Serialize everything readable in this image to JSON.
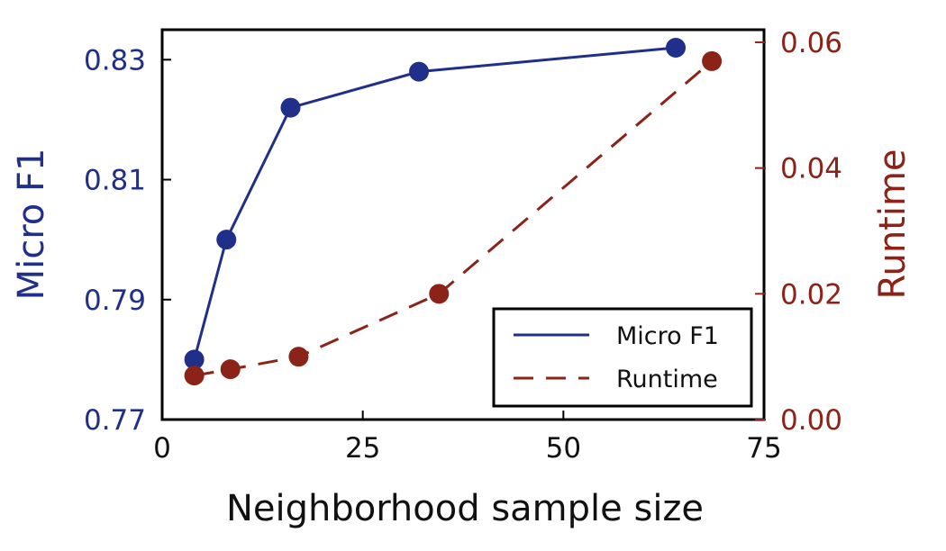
{
  "chart_data": {
    "type": "line",
    "title": "",
    "xlabel": "Neighborhood sample size",
    "xlim": [
      0,
      75
    ],
    "xticks": [
      0,
      25,
      50,
      75
    ],
    "x_tick_labels": [
      "0",
      "25",
      "50",
      "75"
    ],
    "grid": false,
    "legend_position": "bottom-right",
    "left_axis": {
      "label": "Micro F1",
      "color": "#1f2f8a",
      "ylim": [
        0.77,
        0.835
      ],
      "ticks": [
        0.77,
        0.79,
        0.81,
        0.83
      ],
      "tick_labels": [
        "0.77",
        "0.79",
        "0.81",
        "0.83"
      ]
    },
    "right_axis": {
      "label": "Runtime",
      "color": "#8b2318",
      "ylim": [
        0.0,
        0.062
      ],
      "ticks": [
        0.0,
        0.02,
        0.04,
        0.06
      ],
      "tick_labels": [
        "0.00",
        "0.02",
        "0.04",
        "0.06"
      ]
    },
    "series": [
      {
        "name": "Micro F1",
        "axis": "left",
        "line_style": "solid",
        "color": "#1f2f8a",
        "x": [
          4,
          8,
          16,
          32,
          64
        ],
        "values": [
          0.78,
          0.8,
          0.822,
          0.828,
          0.832
        ]
      },
      {
        "name": "Runtime",
        "axis": "right",
        "line_style": "dashed",
        "color": "#8b2318",
        "x": [
          4,
          8.5,
          17,
          34.5,
          68.5
        ],
        "values": [
          0.007,
          0.008,
          0.01,
          0.02,
          0.057
        ]
      }
    ],
    "legend": [
      {
        "label": "Micro F1",
        "line_style": "solid",
        "color": "#1f2f8a"
      },
      {
        "label": "Runtime",
        "line_style": "dashed",
        "color": "#8b2318"
      }
    ]
  }
}
